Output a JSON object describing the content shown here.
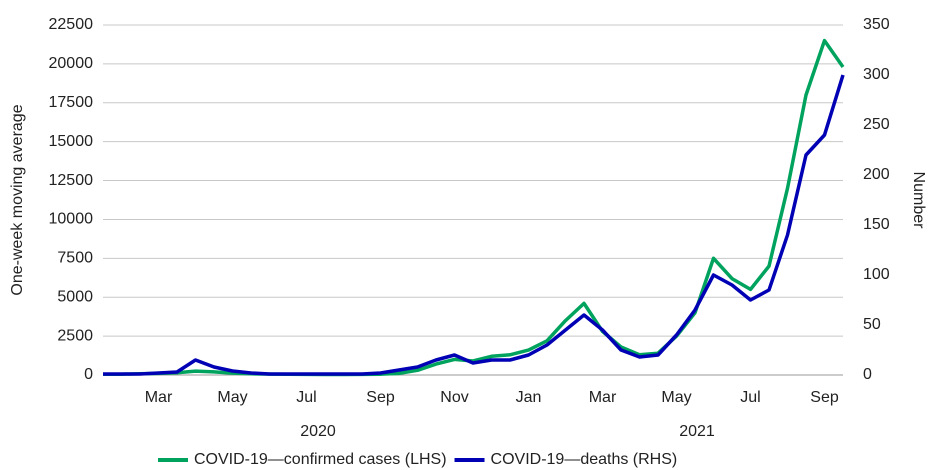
{
  "chart_data": {
    "type": "line",
    "y_label": "One-week moving average",
    "y2_label": "Number",
    "categories": [
      null,
      null,
      null,
      "Mar",
      null,
      null,
      null,
      "May",
      null,
      null,
      null,
      "Jul",
      null,
      null,
      null,
      "Sep",
      null,
      null,
      null,
      "Nov",
      null,
      null,
      null,
      "Jan",
      null,
      null,
      null,
      "Mar",
      null,
      null,
      null,
      "May",
      null,
      null,
      null,
      "Jul",
      null,
      null,
      null,
      "Sep",
      null
    ],
    "x_group_labels": [
      "2020",
      "2021"
    ],
    "series": [
      {
        "name": "COVID-19—confirmed cases (LHS)",
        "color": "#00a35e",
        "axis": "y",
        "values": [
          50,
          50,
          80,
          100,
          150,
          250,
          200,
          120,
          80,
          60,
          50,
          40,
          30,
          30,
          40,
          50,
          100,
          300,
          700,
          1000,
          900,
          1200,
          1300,
          1600,
          2200,
          3500,
          4600,
          2800,
          1800,
          1300,
          1400,
          2500,
          4000,
          7500,
          6200,
          5500,
          7000,
          12000,
          18000,
          21500,
          19800
        ]
      },
      {
        "name": "COVID-19—deaths (RHS)",
        "color": "#0000b4",
        "axis": "y2",
        "values": [
          1,
          1,
          1,
          2,
          3,
          15,
          8,
          4,
          2,
          1,
          1,
          1,
          1,
          1,
          1,
          2,
          5,
          8,
          15,
          20,
          12,
          15,
          15,
          20,
          30,
          45,
          60,
          45,
          25,
          18,
          20,
          40,
          65,
          100,
          90,
          75,
          85,
          140,
          220,
          240,
          300
        ]
      }
    ],
    "ylim": [
      0,
      22500
    ],
    "yticks": [
      0,
      2500,
      5000,
      7500,
      10000,
      12500,
      15000,
      17500,
      20000,
      22500
    ],
    "y2lim": [
      0,
      350
    ],
    "y2ticks": [
      0,
      50,
      100,
      150,
      200,
      250,
      300,
      350
    ],
    "grid": true
  }
}
